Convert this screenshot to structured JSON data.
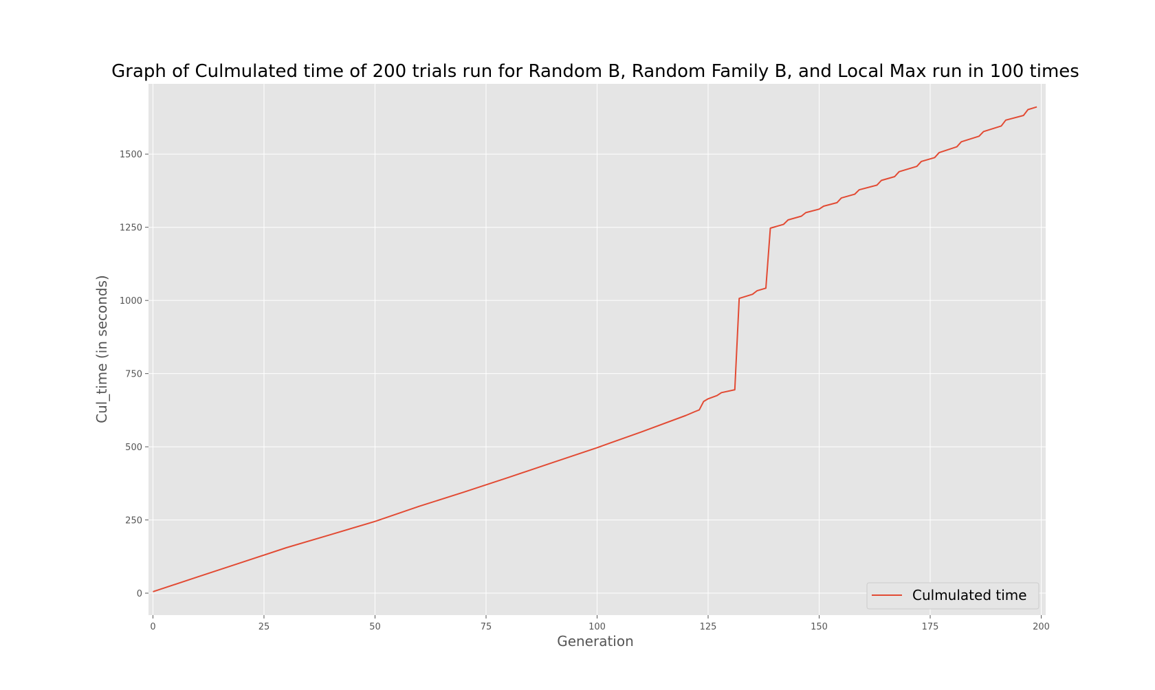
{
  "chart_data": {
    "type": "line",
    "title": "Graph of Culmulated time of 200 trials run for Random B, Random Family B, and Local Max run in 100 times",
    "xlabel": "Generation",
    "ylabel": "Cul_time (in seconds)",
    "xlim": [
      -1,
      201
    ],
    "ylim": [
      -75,
      1740
    ],
    "xticks": [
      0,
      25,
      50,
      75,
      100,
      125,
      150,
      175,
      200
    ],
    "yticks": [
      0,
      250,
      500,
      750,
      1000,
      1250,
      1500
    ],
    "grid": true,
    "legend_position": "lower-right",
    "colors": {
      "line": "#E24A33",
      "plot_bg": "#E5E5E5",
      "grid": "#FFFFFF"
    },
    "series": [
      {
        "name": "Culmulated time",
        "points": [
          [
            0,
            5
          ],
          [
            10,
            55
          ],
          [
            20,
            105
          ],
          [
            30,
            155
          ],
          [
            40,
            200
          ],
          [
            50,
            245
          ],
          [
            60,
            297
          ],
          [
            70,
            345
          ],
          [
            80,
            395
          ],
          [
            90,
            446
          ],
          [
            100,
            497
          ],
          [
            110,
            551
          ],
          [
            120,
            607
          ],
          [
            122,
            620
          ],
          [
            123,
            626
          ],
          [
            124,
            655
          ],
          [
            125,
            664
          ],
          [
            127,
            675
          ],
          [
            128,
            685
          ],
          [
            131,
            695
          ],
          [
            132,
            1007
          ],
          [
            135,
            1021
          ],
          [
            136,
            1033
          ],
          [
            138,
            1042
          ],
          [
            139,
            1247
          ],
          [
            142,
            1260
          ],
          [
            143,
            1275
          ],
          [
            146,
            1288
          ],
          [
            147,
            1300
          ],
          [
            150,
            1312
          ],
          [
            151,
            1322
          ],
          [
            154,
            1334
          ],
          [
            155,
            1350
          ],
          [
            158,
            1363
          ],
          [
            159,
            1378
          ],
          [
            163,
            1394
          ],
          [
            164,
            1410
          ],
          [
            167,
            1423
          ],
          [
            168,
            1440
          ],
          [
            172,
            1458
          ],
          [
            173,
            1475
          ],
          [
            176,
            1488
          ],
          [
            177,
            1505
          ],
          [
            181,
            1525
          ],
          [
            182,
            1542
          ],
          [
            186,
            1561
          ],
          [
            187,
            1577
          ],
          [
            191,
            1596
          ],
          [
            192,
            1616
          ],
          [
            196,
            1632
          ],
          [
            197,
            1652
          ],
          [
            199,
            1661
          ]
        ]
      }
    ]
  }
}
